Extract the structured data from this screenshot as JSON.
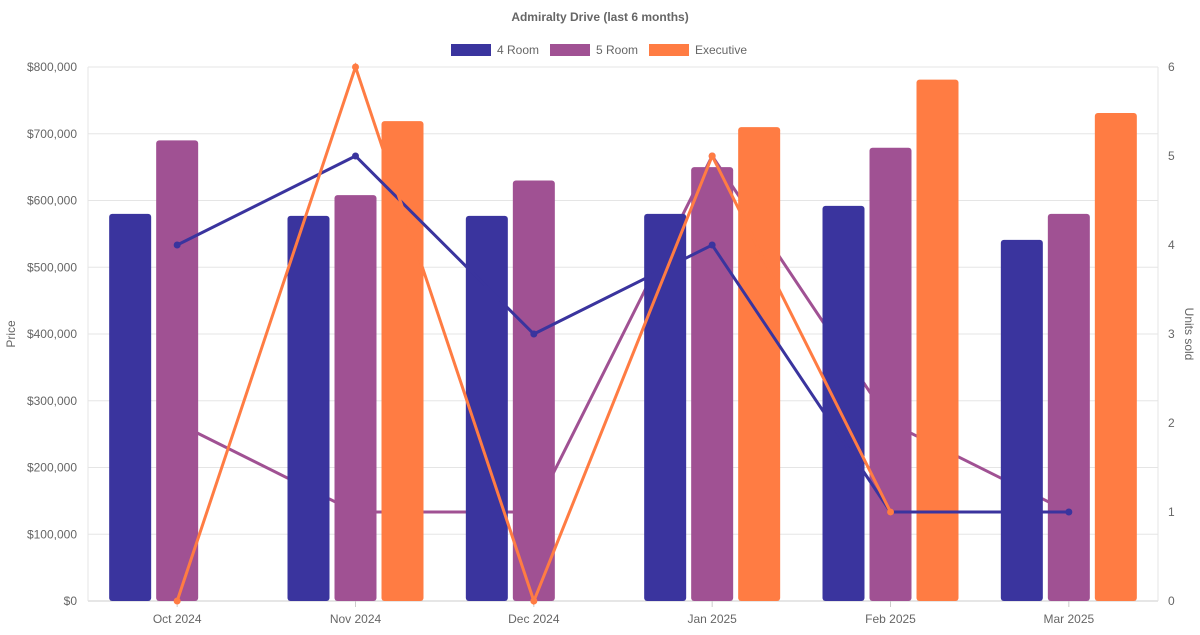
{
  "chart_data": {
    "type": "bar",
    "title": "Admiralty Drive (last 6 months)",
    "categories": [
      "Oct 2024",
      "Nov 2024",
      "Dec 2024",
      "Jan 2025",
      "Feb 2025",
      "Mar 2025"
    ],
    "ylabel": "Price",
    "y2label": "Units sold",
    "ylim": [
      0,
      800000
    ],
    "y2lim": [
      0,
      6
    ],
    "yticks": [
      "$0",
      "$100,000",
      "$200,000",
      "$300,000",
      "$400,000",
      "$500,000",
      "$600,000",
      "$700,000",
      "$800,000"
    ],
    "y2ticks": [
      "0",
      "1",
      "2",
      "3",
      "4",
      "5",
      "6"
    ],
    "legend_position": "top",
    "grid": true,
    "series": [
      {
        "name": "4 Room",
        "color": "#3a349e",
        "price": [
          580000,
          577000,
          577000,
          580000,
          592000,
          541000
        ],
        "units": [
          4,
          5,
          3,
          4,
          1,
          1
        ]
      },
      {
        "name": "5 Room",
        "color": "#a05193",
        "price": [
          690000,
          608000,
          630000,
          650000,
          679000,
          580000
        ],
        "units": [
          2,
          1,
          1,
          5,
          2,
          1
        ]
      },
      {
        "name": "Executive",
        "color": "#ff7c43",
        "price": [
          null,
          719000,
          null,
          710000,
          781000,
          731000
        ],
        "units": [
          0,
          6,
          0,
          5,
          1,
          null
        ]
      }
    ]
  }
}
